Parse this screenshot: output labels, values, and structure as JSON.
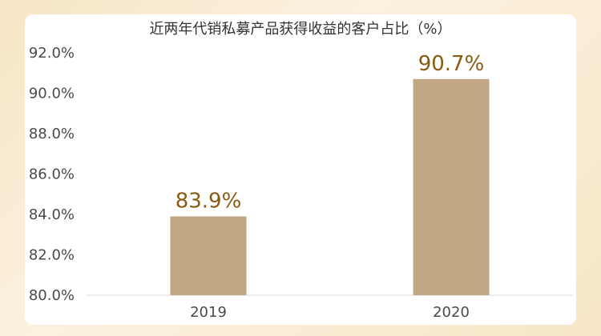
{
  "chart_data": {
    "type": "bar",
    "title": "近两年代销私募产品获得收益的客户占比（%）",
    "categories": [
      "2019",
      "2020"
    ],
    "values": [
      83.9,
      90.7
    ],
    "data_labels": [
      "83.9%",
      "90.7%"
    ],
    "ylim": [
      80,
      92
    ],
    "y_ticks": [
      80,
      82,
      84,
      86,
      88,
      90,
      92
    ],
    "y_tick_labels": [
      "80.0%",
      "82.0%",
      "84.0%",
      "86.0%",
      "88.0%",
      "90.0%",
      "92.0%"
    ],
    "grid": false,
    "xlabel": "",
    "ylabel": "",
    "bar_color": "#c1a783",
    "label_color": "#8a5a12"
  }
}
